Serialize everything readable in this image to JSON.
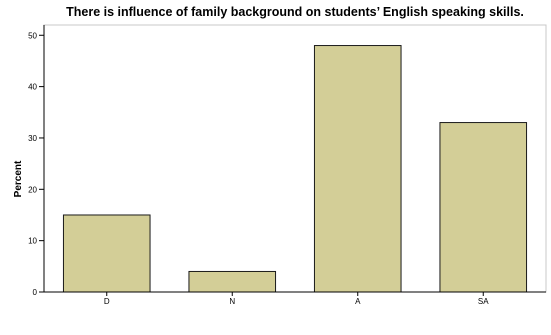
{
  "chart_data": {
    "type": "bar",
    "title": "There is influence of family background on students’ English speaking skills.",
    "xlabel": "",
    "ylabel": "Percent",
    "categories": [
      "D",
      "N",
      "A",
      "SA"
    ],
    "values": [
      15,
      4,
      48,
      33
    ],
    "ylim": [
      0,
      52
    ],
    "yticks": [
      0,
      10,
      20,
      30,
      40,
      50
    ],
    "grid": false,
    "legend": "none",
    "bar_color": "#d3ce97",
    "bar_edge_color": "#1a1a1a",
    "plot_border_color": "#c8c8c8"
  }
}
